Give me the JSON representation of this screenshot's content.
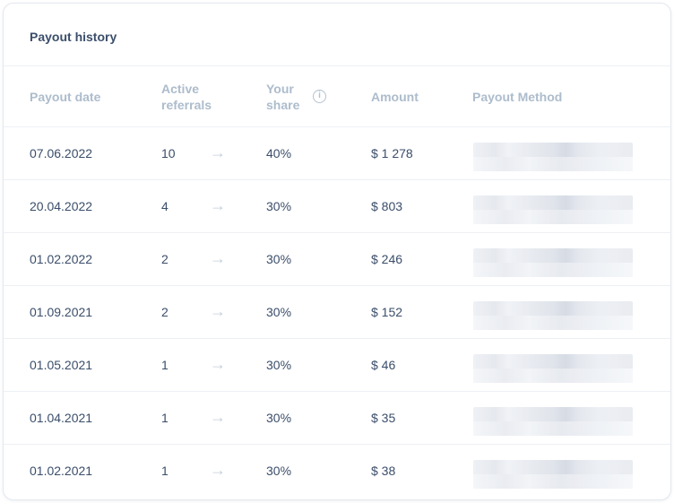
{
  "card": {
    "title": "Payout history"
  },
  "columns": {
    "date": "Payout date",
    "referrals_line1": "Active",
    "referrals_line2": "referrals",
    "share_line1": "Your",
    "share_line2": "share",
    "share_info_icon": "info-icon",
    "amount": "Amount",
    "method": "Payout Method"
  },
  "rows": [
    {
      "date": "07.06.2022",
      "referrals": "10",
      "share": "40%",
      "amount": "$ 1 278"
    },
    {
      "date": "20.04.2022",
      "referrals": "4",
      "share": "30%",
      "amount": "$ 803"
    },
    {
      "date": "01.02.2022",
      "referrals": "2",
      "share": "30%",
      "amount": "$ 246"
    },
    {
      "date": "01.09.2021",
      "referrals": "2",
      "share": "30%",
      "amount": "$ 152"
    },
    {
      "date": "01.05.2021",
      "referrals": "1",
      "share": "30%",
      "amount": "$ 46"
    },
    {
      "date": "01.04.2021",
      "referrals": "1",
      "share": "30%",
      "amount": "$ 35"
    },
    {
      "date": "01.02.2021",
      "referrals": "1",
      "share": "30%",
      "amount": "$ 38"
    }
  ],
  "icons": {
    "row_arrow": "arrow-right-icon",
    "info": "info-icon"
  },
  "colors": {
    "text": "#3b4e6a",
    "header_text": "#adbccc",
    "border": "#edf0f4"
  }
}
